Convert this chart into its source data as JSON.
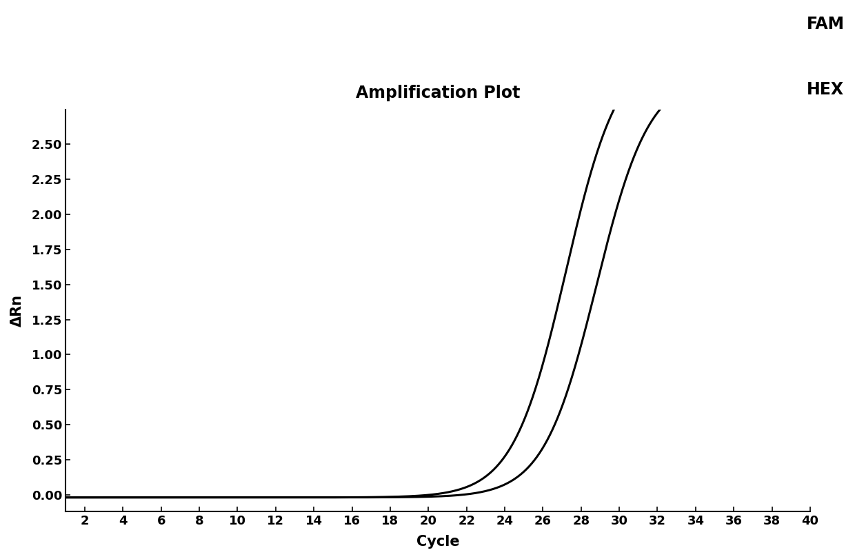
{
  "title": "Amplification Plot",
  "xlabel": "Cycle",
  "ylabel": "ΔRn",
  "xlim": [
    1,
    40
  ],
  "ylim": [
    -0.12,
    2.75
  ],
  "xticks": [
    2,
    4,
    6,
    8,
    10,
    12,
    14,
    16,
    18,
    20,
    22,
    24,
    26,
    28,
    30,
    32,
    34,
    36,
    38,
    40
  ],
  "yticks": [
    0.0,
    0.25,
    0.5,
    0.75,
    1.0,
    1.25,
    1.5,
    1.75,
    2.0,
    2.25,
    2.5
  ],
  "fam_color": "#000000",
  "hex_color": "#000000",
  "fam_label": "FAM",
  "hex_label": "HEX",
  "fam_midpoint": 27.2,
  "fam_steepness": 0.72,
  "fam_max": 3.2,
  "fam_min": -0.02,
  "hex_midpoint": 28.8,
  "hex_steepness": 0.72,
  "hex_max": 3.0,
  "hex_min": -0.02,
  "background_color": "#ffffff",
  "title_fontsize": 17,
  "label_fontsize": 15,
  "tick_fontsize": 13,
  "annotation_fontsize": 17,
  "line_width": 2.2
}
